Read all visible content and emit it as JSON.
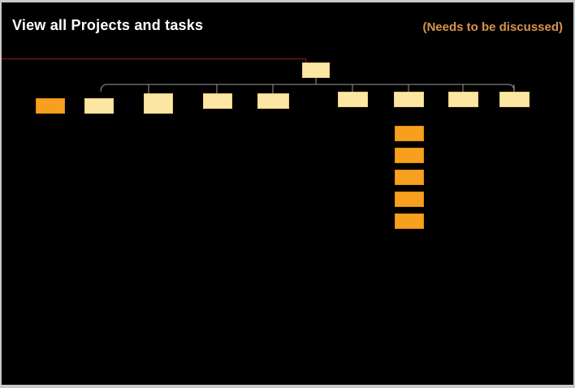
{
  "header": {
    "title": "View all Projects and tasks",
    "note": "(Needs to be discussed)"
  },
  "colors": {
    "background": "#000000",
    "title": "#ffffff",
    "note": "#d9944a",
    "pale_node": "#fbe6a4",
    "orange_node": "#f7a01f",
    "connector": "#9a9a9a",
    "accent_line": "#8a1f1f"
  },
  "diagram": {
    "root": {
      "label": ""
    },
    "children": [
      {
        "label": "",
        "style": "orange"
      },
      {
        "label": "",
        "style": "pale"
      },
      {
        "label": "",
        "style": "pale"
      },
      {
        "label": "",
        "style": "pale"
      },
      {
        "label": "",
        "style": "pale"
      },
      {
        "label": "",
        "style": "pale"
      },
      {
        "label": "",
        "style": "pale"
      },
      {
        "label": "",
        "style": "pale"
      },
      {
        "label": "",
        "style": "pale"
      }
    ],
    "subtasks": [
      {
        "label": ""
      },
      {
        "label": ""
      },
      {
        "label": ""
      },
      {
        "label": ""
      },
      {
        "label": ""
      }
    ]
  }
}
